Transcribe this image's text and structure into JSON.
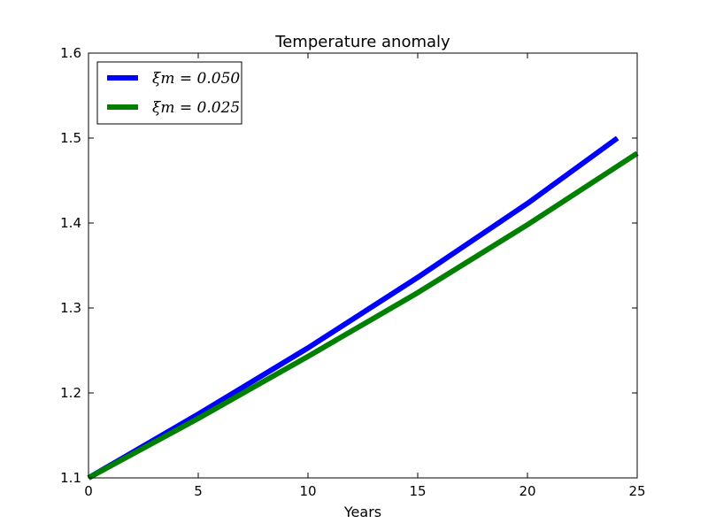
{
  "chart_data": {
    "type": "line",
    "title": "Temperature anomaly",
    "xlabel": "Years",
    "ylabel": "",
    "xlim": [
      0,
      25
    ],
    "ylim": [
      1.1,
      1.6
    ],
    "x_ticks": [
      0,
      5,
      10,
      15,
      20,
      25
    ],
    "x_tick_labels": [
      "0",
      "5",
      "10",
      "15",
      "20",
      "25"
    ],
    "y_ticks": [
      1.1,
      1.2,
      1.3,
      1.4,
      1.5,
      1.6
    ],
    "y_tick_labels": [
      "1.1",
      "1.2",
      "1.3",
      "1.4",
      "1.5",
      "1.6"
    ],
    "grid": false,
    "legend_position": "top-left",
    "series": [
      {
        "name": "ξm = 0.050",
        "color": "#0000ff",
        "x": [
          0,
          5,
          10,
          15,
          20,
          24.1
        ],
        "y": [
          1.1,
          1.175,
          1.253,
          1.336,
          1.423,
          1.5
        ]
      },
      {
        "name": "ξm = 0.025",
        "color": "#008000",
        "x": [
          0,
          5,
          10,
          15,
          20,
          25
        ],
        "y": [
          1.1,
          1.17,
          1.243,
          1.318,
          1.398,
          1.482
        ]
      }
    ]
  }
}
